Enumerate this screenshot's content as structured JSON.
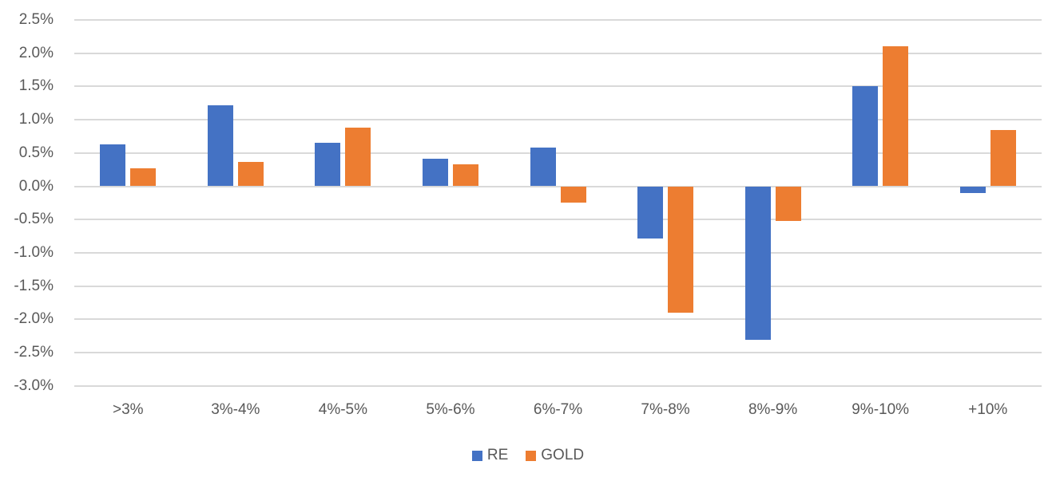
{
  "chart_data": {
    "type": "bar",
    "title": "",
    "xlabel": "",
    "ylabel": "",
    "categories": [
      ">3%",
      "3%-4%",
      "4%-5%",
      "5%-6%",
      "6%-7%",
      "7%-8%",
      "8%-9%",
      "9%-10%",
      "+10%"
    ],
    "series": [
      {
        "name": "RE",
        "color": "#4472C4",
        "values": [
          0.63,
          1.22,
          0.65,
          0.41,
          0.58,
          -0.78,
          -2.31,
          1.5,
          -0.1
        ]
      },
      {
        "name": "GOLD",
        "color": "#ED7D31",
        "values": [
          0.27,
          0.36,
          0.88,
          0.33,
          -0.25,
          -1.9,
          -0.52,
          2.1,
          0.84
        ]
      }
    ],
    "ylim": [
      -3.0,
      2.5
    ],
    "ytick_step": 0.5,
    "ytick_labels": [
      "2.5%",
      "2.0%",
      "1.5%",
      "1.0%",
      "0.5%",
      "0.0%",
      "-0.5%",
      "-1.0%",
      "-1.5%",
      "-2.0%",
      "-2.5%",
      "-3.0%"
    ],
    "ytick_values": [
      2.5,
      2.0,
      1.5,
      1.0,
      0.5,
      0.0,
      -0.5,
      -1.0,
      -1.5,
      -2.0,
      -2.5,
      -3.0
    ],
    "grid": true,
    "legend_position": "bottom",
    "gridline_color": "#D9D9D9",
    "text_color": "#595959",
    "background_color": "#FFFFFF"
  },
  "legend": {
    "items": [
      {
        "label": "RE",
        "color": "#4472C4"
      },
      {
        "label": "GOLD",
        "color": "#ED7D31"
      }
    ]
  }
}
